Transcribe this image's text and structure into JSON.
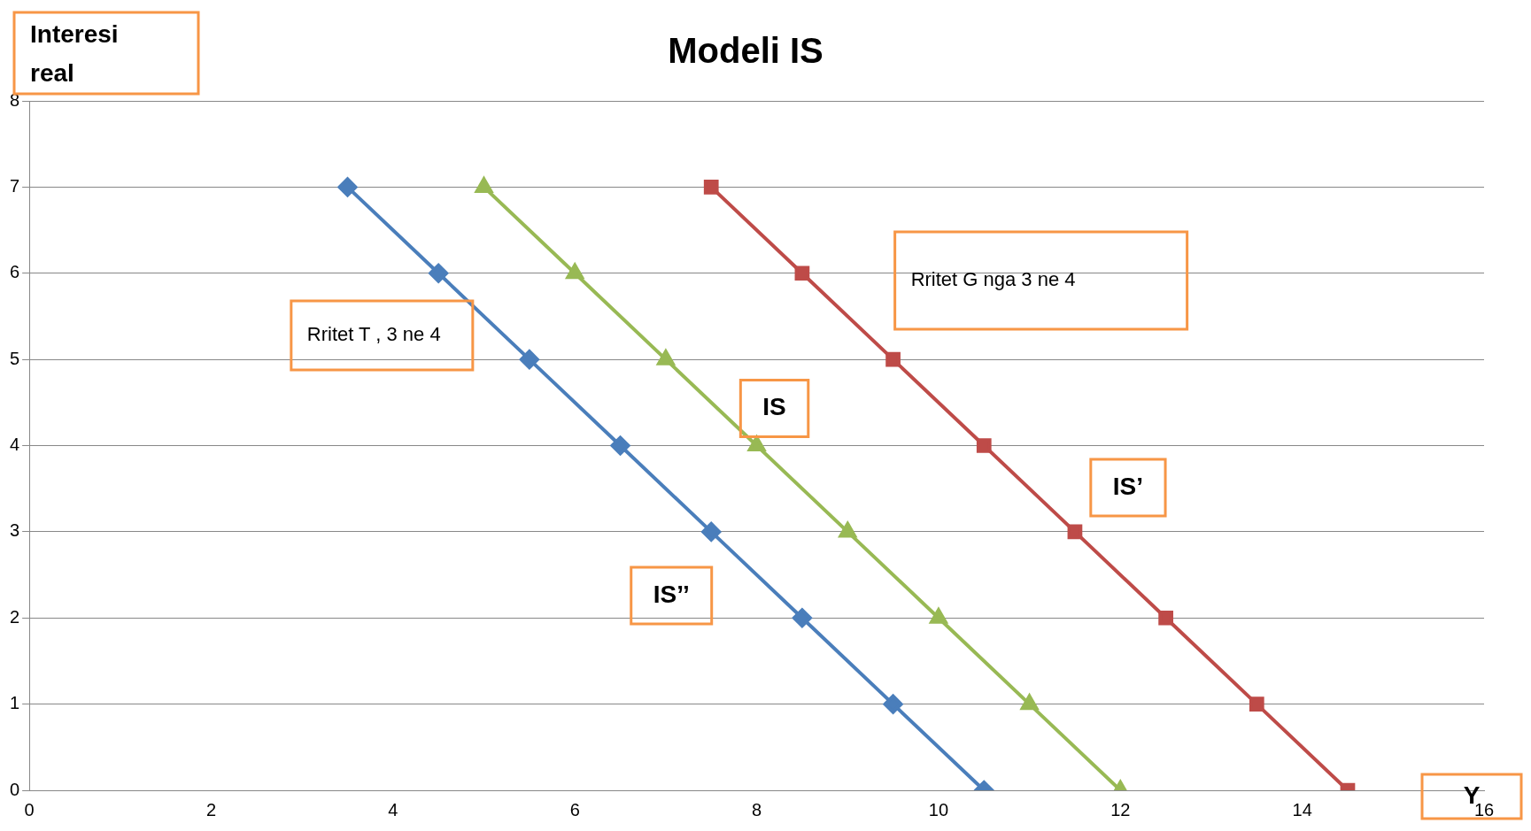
{
  "chart_data": {
    "type": "line",
    "title": "Modeli IS",
    "xlabel": "Y",
    "ylabel": "Interesi real",
    "xlim": [
      0,
      16
    ],
    "xticks": [
      0,
      2,
      4,
      6,
      8,
      10,
      12,
      14,
      16
    ],
    "ylim": [
      0,
      8
    ],
    "yticks": [
      0,
      1,
      2,
      3,
      4,
      5,
      6,
      7,
      8
    ],
    "grid": "y",
    "legend": false,
    "series": [
      {
        "name": "IS’’",
        "color": "#4a7ebb",
        "marker": "diamond",
        "x": [
          3.5,
          4.5,
          5.5,
          6.5,
          7.5,
          8.5,
          9.5,
          10.5
        ],
        "values": [
          7,
          6,
          5,
          4,
          3,
          2,
          1,
          0
        ]
      },
      {
        "name": "IS",
        "color": "#98b954",
        "marker": "triangle",
        "x": [
          5,
          6,
          7,
          8,
          9,
          10,
          11,
          12
        ],
        "values": [
          7,
          6,
          5,
          4,
          3,
          2,
          1,
          0
        ]
      },
      {
        "name": "IS’",
        "color": "#be4b48",
        "marker": "square",
        "x": [
          7.5,
          8.5,
          9.5,
          10.5,
          11.5,
          12.5,
          13.5,
          14.5
        ],
        "values": [
          7,
          6,
          5,
          4,
          3,
          2,
          1,
          0
        ]
      }
    ],
    "annotations": [
      "Rritet T , 3 ne 4",
      "Rritet G nga 3 ne 4"
    ]
  }
}
